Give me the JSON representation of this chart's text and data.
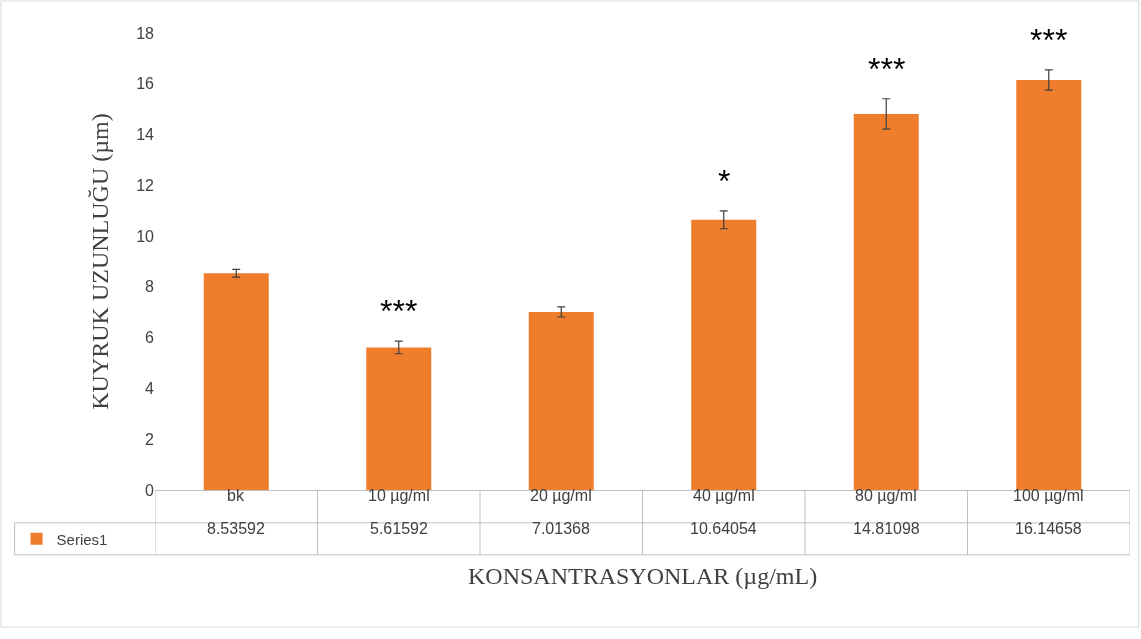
{
  "chart_data": {
    "type": "bar",
    "xlabel": "KONSANTRASYONLAR (µg/mL)",
    "ylabel": "KUYRUK UZUNLUĞU (µm)",
    "categories": [
      "bk",
      "10 µg/ml",
      "20 µg/ml",
      "40 µg/ml",
      "80 µg/ml",
      "100 µg/ml"
    ],
    "series": [
      {
        "name": "Series1",
        "color": "#ef7d2c",
        "values": [
          8.53592,
          5.61592,
          7.01368,
          10.64054,
          14.81098,
          16.14658
        ],
        "errors": [
          0.15,
          0.25,
          0.2,
          0.35,
          0.6,
          0.4
        ]
      }
    ],
    "data_labels": true,
    "ylim": [
      0,
      18
    ],
    "yticks": [
      0,
      2,
      4,
      6,
      8,
      10,
      12,
      14,
      16,
      18
    ],
    "legend": "bottom left",
    "annotations": [
      "***",
      "*",
      "***",
      "***"
    ]
  }
}
